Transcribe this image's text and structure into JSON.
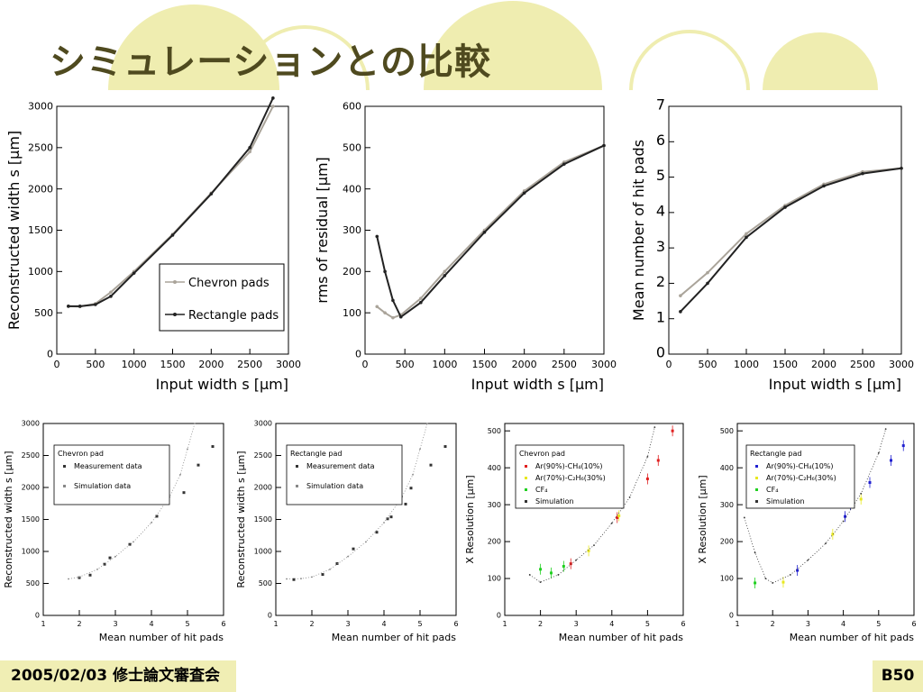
{
  "slide": {
    "title": "シミュレーションとの比較",
    "footer_date": "2005/02/03 修士論文審査会",
    "page_label": "B50",
    "decor_color": "#efedb0"
  },
  "chart_data": [
    {
      "type": "line",
      "xlabel": "Input width s_in [μm]",
      "ylabel": "Reconstructed width s_rec [μm]",
      "xlim": [
        0,
        3000
      ],
      "ylim": [
        0,
        3000
      ],
      "xticks": [
        0,
        500,
        1000,
        1500,
        2000,
        2500,
        3000
      ],
      "yticks": [
        0,
        500,
        1000,
        1500,
        2000,
        2500,
        3000
      ],
      "legend": "lower-right",
      "series": [
        {
          "name": "Chevron pads",
          "x": [
            150,
            300,
            500,
            700,
            1000,
            1500,
            2000,
            2500,
            2800
          ],
          "y": [
            580,
            575,
            610,
            750,
            1000,
            1450,
            1950,
            2450,
            3000
          ]
        },
        {
          "name": "Rectangle pads",
          "x": [
            150,
            300,
            500,
            700,
            1000,
            1500,
            2000,
            2500,
            2800
          ],
          "y": [
            580,
            580,
            600,
            700,
            980,
            1440,
            1940,
            2500,
            3100
          ]
        }
      ]
    },
    {
      "type": "line",
      "xlabel": "Input width s_in [μm]",
      "ylabel": "rms of residual [μm]",
      "xlim": [
        0,
        3000
      ],
      "ylim": [
        0,
        600
      ],
      "xticks": [
        0,
        500,
        1000,
        1500,
        2000,
        2500,
        3000
      ],
      "yticks": [
        0,
        100,
        200,
        300,
        400,
        500,
        600
      ],
      "series": [
        {
          "name": "Chevron pads",
          "x": [
            150,
            250,
            350,
            450,
            700,
            1000,
            1500,
            2000,
            2500,
            3000
          ],
          "y": [
            115,
            100,
            88,
            95,
            135,
            200,
            300,
            395,
            465,
            505
          ]
        },
        {
          "name": "Rectangle pads",
          "x": [
            150,
            250,
            350,
            450,
            700,
            1000,
            1500,
            2000,
            2500,
            3000
          ],
          "y": [
            285,
            200,
            130,
            90,
            125,
            190,
            295,
            390,
            460,
            505
          ]
        }
      ]
    },
    {
      "type": "line",
      "xlabel": "Input width s_in [μm]",
      "ylabel": "Mean number of hit pads",
      "xlim": [
        0,
        3000
      ],
      "ylim": [
        0,
        7
      ],
      "xticks": [
        0,
        500,
        1000,
        1500,
        2000,
        2500,
        3000
      ],
      "yticks": [
        0,
        1,
        2,
        3,
        4,
        5,
        6,
        7
      ],
      "series": [
        {
          "name": "Chevron pads",
          "x": [
            150,
            500,
            1000,
            1500,
            2000,
            2500,
            3000
          ],
          "y": [
            1.65,
            2.3,
            3.4,
            4.2,
            4.8,
            5.15,
            5.25
          ]
        },
        {
          "name": "Rectangle pads",
          "x": [
            150,
            500,
            1000,
            1500,
            2000,
            2500,
            3000
          ],
          "y": [
            1.2,
            2.0,
            3.3,
            4.15,
            4.75,
            5.1,
            5.25
          ]
        }
      ]
    },
    {
      "type": "scatter",
      "xlabel": "Mean number of hit pads",
      "ylabel": "Reconstructed width s_x, rec [μm]",
      "xlim": [
        1,
        6
      ],
      "ylim": [
        0,
        3000
      ],
      "xticks": [
        1,
        2,
        3,
        4,
        5,
        6
      ],
      "yticks": [
        0,
        500,
        1000,
        1500,
        2000,
        2500,
        3000
      ],
      "legend_title": "Chevron pad",
      "series": [
        {
          "name": "Measurement data",
          "x": [
            2.0,
            2.3,
            2.7,
            2.85,
            3.4,
            4.15,
            4.9,
            5.3,
            5.7
          ],
          "y": [
            590,
            630,
            800,
            900,
            1110,
            1550,
            1920,
            2350,
            2640
          ]
        },
        {
          "name": "Simulation data",
          "x": [
            1.7,
            2.0,
            2.5,
            3.0,
            3.5,
            4.0,
            4.5,
            4.8,
            5.0,
            5.2
          ],
          "y": [
            570,
            600,
            720,
            920,
            1150,
            1450,
            1850,
            2200,
            2600,
            3000
          ]
        }
      ]
    },
    {
      "type": "scatter",
      "xlabel": "Mean number of hit pads",
      "ylabel": "Reconstructed width s_x, rec [μm]",
      "xlim": [
        1,
        6
      ],
      "ylim": [
        0,
        3000
      ],
      "xticks": [
        1,
        2,
        3,
        4,
        5,
        6
      ],
      "yticks": [
        0,
        500,
        1000,
        1500,
        2000,
        2500,
        3000
      ],
      "legend_title": "Rectangle pad",
      "series": [
        {
          "name": "Measurement data",
          "x": [
            1.5,
            2.3,
            2.7,
            3.15,
            3.8,
            4.1,
            4.2,
            4.6,
            4.75,
            5.3,
            5.7
          ],
          "y": [
            560,
            640,
            810,
            1040,
            1300,
            1510,
            1540,
            1740,
            1990,
            2350,
            2640
          ]
        },
        {
          "name": "Simulation data",
          "x": [
            1.3,
            1.7,
            2.0,
            2.5,
            3.0,
            3.5,
            4.0,
            4.5,
            4.8,
            5.0,
            5.2
          ],
          "y": [
            570,
            575,
            600,
            720,
            920,
            1150,
            1450,
            1850,
            2200,
            2600,
            3000
          ]
        }
      ]
    },
    {
      "type": "scatter",
      "xlabel": "Mean number of hit pads",
      "ylabel": "X Resolution [μm]",
      "xlim": [
        1,
        6
      ],
      "ylim": [
        0,
        520
      ],
      "xticks": [
        1,
        2,
        3,
        4,
        5,
        6
      ],
      "yticks": [
        0,
        100,
        200,
        300,
        400,
        500
      ],
      "legend_title": "Chevron pad",
      "series": [
        {
          "name": "Ar(90%)-CH4(10%)",
          "color": "#e02020",
          "x": [
            2.85,
            4.15,
            5.0,
            5.3,
            5.7
          ],
          "y": [
            140,
            265,
            370,
            420,
            500
          ]
        },
        {
          "name": "Ar(70%)-C2H6(30%)",
          "color": "#e8e820",
          "x": [
            3.35,
            4.2
          ],
          "y": [
            175,
            270
          ]
        },
        {
          "name": "CF4",
          "color": "#20d020",
          "x": [
            2.0,
            2.3,
            2.65
          ],
          "y": [
            125,
            115,
            133
          ]
        },
        {
          "name": "Simulation",
          "color": "#333333",
          "x": [
            1.7,
            2.0,
            2.5,
            3.0,
            3.5,
            4.0,
            4.5,
            5.0,
            5.2
          ],
          "y": [
            110,
            90,
            110,
            150,
            190,
            250,
            320,
            430,
            510
          ]
        }
      ]
    },
    {
      "type": "scatter",
      "xlabel": "Mean number of hit pads",
      "ylabel": "X Resolution [μm]",
      "xlim": [
        1,
        6
      ],
      "ylim": [
        0,
        520
      ],
      "xticks": [
        1,
        2,
        3,
        4,
        5,
        6
      ],
      "yticks": [
        0,
        100,
        200,
        300,
        400,
        500
      ],
      "legend_title": "Rectangle pad",
      "series": [
        {
          "name": "Ar(90%)-CH4(10%)",
          "color": "#2020d0",
          "x": [
            2.7,
            4.05,
            4.2,
            4.75,
            5.35,
            5.7
          ],
          "y": [
            122,
            268,
            300,
            360,
            420,
            460
          ]
        },
        {
          "name": "Ar(70%)-C2H6(30%)",
          "color": "#e8e820",
          "x": [
            2.3,
            3.7,
            4.5
          ],
          "y": [
            90,
            220,
            315
          ]
        },
        {
          "name": "CF4",
          "color": "#20d020",
          "x": [
            1.5
          ],
          "y": [
            88
          ]
        },
        {
          "name": "Simulation",
          "color": "#333333",
          "x": [
            1.2,
            1.5,
            1.8,
            2.0,
            2.5,
            3.0,
            3.5,
            4.0,
            4.5,
            5.0,
            5.2
          ],
          "y": [
            265,
            170,
            100,
            88,
            110,
            150,
            195,
            255,
            330,
            440,
            505
          ]
        }
      ]
    }
  ]
}
